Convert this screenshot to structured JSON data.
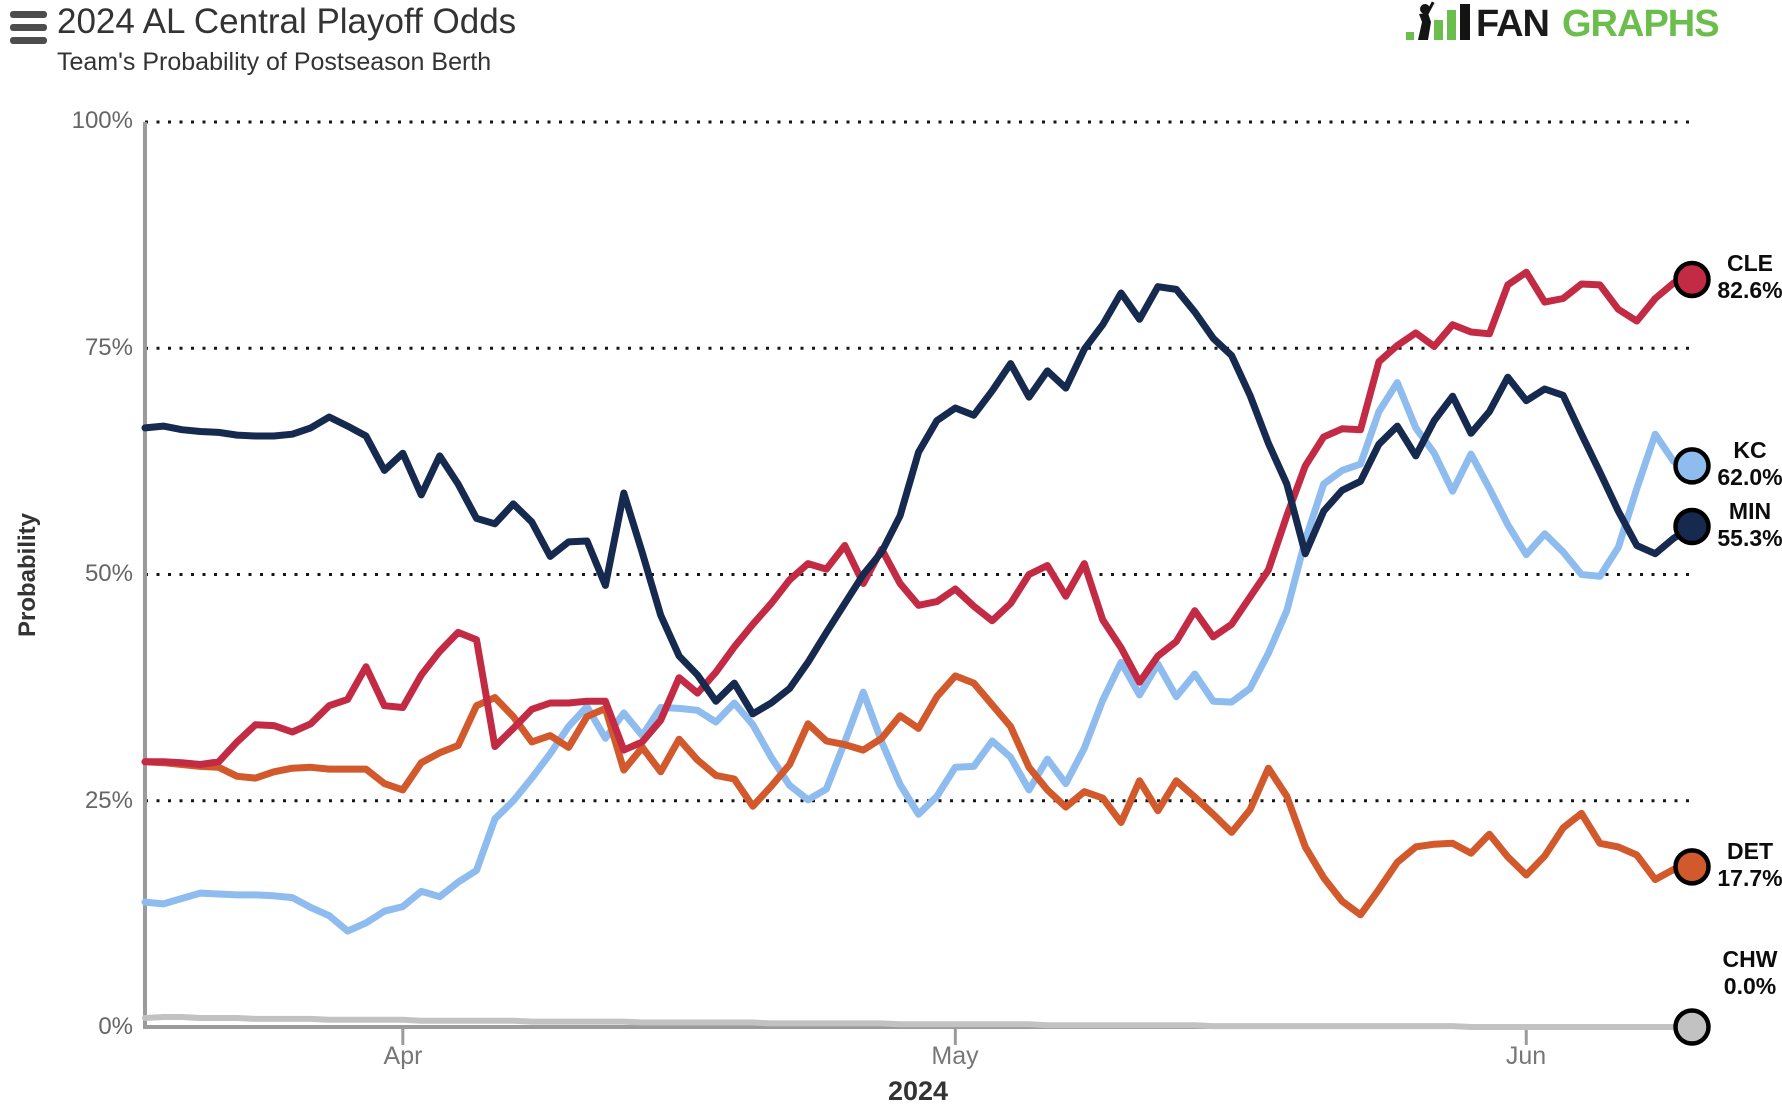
{
  "header": {
    "title": "2024 AL Central Playoff Odds",
    "subtitle": "Team's Probability of Postseason Berth",
    "brand": {
      "fan": "FAN",
      "graphs": "GRAPHS",
      "green": "#6cbe4c",
      "black": "#1a1a1a"
    }
  },
  "axis": {
    "y_ticks": [
      "100%",
      "75%",
      "50%",
      "25%",
      "0%"
    ],
    "x_ticks": [
      "Apr",
      "May",
      "Jun"
    ],
    "ylabel": "Probability",
    "xlabel": "2024"
  },
  "chart_data": {
    "type": "line",
    "title": "2024 AL Central Playoff Odds",
    "subtitle": "Team's Probability of Postseason Berth",
    "ylabel": "Probability",
    "xlabel": "2024",
    "ylim": [
      0,
      100
    ],
    "grid": "horizontal dotted lines at 25/50/75/100",
    "legend_position": "right edge end-point labels with circular markers",
    "y_tick_values": [
      100,
      75,
      50,
      25,
      0
    ],
    "y_tick_labels": [
      "100%",
      "75%",
      "50%",
      "25%",
      "0%"
    ],
    "x_tick_labels": [
      "Apr",
      "May",
      "Jun"
    ],
    "x_tick_days": [
      14,
      44,
      75
    ],
    "x_start_date": "2024-03-18",
    "x_end_date": "2024-06-10",
    "dates": [
      "3/18",
      "3/19",
      "3/20",
      "3/21",
      "3/22",
      "3/23",
      "3/24",
      "3/25",
      "3/26",
      "3/27",
      "3/28",
      "3/29",
      "3/30",
      "3/31",
      "4/1",
      "4/2",
      "4/3",
      "4/4",
      "4/5",
      "4/6",
      "4/7",
      "4/8",
      "4/9",
      "4/10",
      "4/11",
      "4/12",
      "4/13",
      "4/14",
      "4/15",
      "4/16",
      "4/17",
      "4/18",
      "4/19",
      "4/20",
      "4/21",
      "4/22",
      "4/23",
      "4/24",
      "4/25",
      "4/26",
      "4/27",
      "4/28",
      "4/29",
      "4/30",
      "5/1",
      "5/2",
      "5/3",
      "5/4",
      "5/5",
      "5/6",
      "5/7",
      "5/8",
      "5/9",
      "5/10",
      "5/11",
      "5/12",
      "5/13",
      "5/14",
      "5/15",
      "5/16",
      "5/17",
      "5/18",
      "5/19",
      "5/20",
      "5/21",
      "5/22",
      "5/23",
      "5/24",
      "5/25",
      "5/26",
      "5/27",
      "5/28",
      "5/29",
      "5/30",
      "5/31",
      "6/1",
      "6/2",
      "6/3",
      "6/4",
      "6/5",
      "6/6",
      "6/7",
      "6/8",
      "6/9",
      "6/10"
    ],
    "series": [
      {
        "name": "CLE",
        "end_value": "82.6%",
        "color": "#c32b45",
        "values": [
          29.3,
          29.3,
          29.2,
          29.0,
          29.3,
          31.5,
          33.4,
          33.3,
          32.6,
          33.5,
          35.5,
          36.2,
          39.8,
          35.5,
          35.3,
          38.9,
          41.5,
          43.6,
          42.8,
          31.0,
          33.0,
          35.1,
          35.8,
          35.8,
          36.0,
          36.0,
          30.6,
          31.5,
          33.9,
          38.6,
          36.9,
          39.2,
          42.0,
          44.5,
          46.8,
          49.4,
          51.2,
          50.6,
          53.2,
          49.0,
          52.8,
          49.0,
          46.6,
          47.0,
          48.4,
          46.5,
          44.9,
          46.8,
          50.0,
          51.0,
          47.6,
          51.2,
          45.0,
          41.9,
          38.1,
          41.0,
          42.6,
          46.0,
          43.1,
          44.5,
          47.5,
          50.5,
          56.5,
          62.0,
          65.2,
          66.1,
          66.0,
          73.5,
          75.3,
          76.7,
          75.2,
          77.6,
          76.8,
          76.6,
          82.0,
          83.4,
          80.1,
          80.5,
          82.1,
          82.0,
          79.3,
          78.0,
          80.5,
          82.2,
          82.6
        ]
      },
      {
        "name": "KC",
        "end_value": "62.0%",
        "color": "#8fbcee",
        "values": [
          13.8,
          13.6,
          14.2,
          14.8,
          14.7,
          14.6,
          14.6,
          14.5,
          14.3,
          13.2,
          12.3,
          10.6,
          11.5,
          12.8,
          13.3,
          15.0,
          14.4,
          16.0,
          17.3,
          23.0,
          25.0,
          27.5,
          30.2,
          33.2,
          35.4,
          31.9,
          34.7,
          32.2,
          35.3,
          35.2,
          35.0,
          33.7,
          35.8,
          33.4,
          29.8,
          26.7,
          25.1,
          26.3,
          31.5,
          37.0,
          31.5,
          26.8,
          23.5,
          25.5,
          28.7,
          28.8,
          31.6,
          29.8,
          26.2,
          29.6,
          26.9,
          30.8,
          36.1,
          40.3,
          36.7,
          40.1,
          36.5,
          39.0,
          36.0,
          35.9,
          37.4,
          41.3,
          46.0,
          53.8,
          60.0,
          61.5,
          62.2,
          68.0,
          71.2,
          66.2,
          63.4,
          59.2,
          63.3,
          59.5,
          55.5,
          52.2,
          54.5,
          52.5,
          50.0,
          49.8,
          53.0,
          59.5,
          65.5,
          62.5,
          62.0
        ]
      },
      {
        "name": "MIN",
        "end_value": "55.3%",
        "color": "#16294e",
        "values": [
          66.2,
          66.4,
          66.0,
          65.8,
          65.7,
          65.4,
          65.3,
          65.3,
          65.5,
          66.2,
          67.4,
          66.4,
          65.3,
          61.5,
          63.4,
          58.8,
          63.1,
          60.0,
          56.2,
          55.6,
          57.8,
          55.8,
          52.0,
          53.6,
          53.7,
          48.8,
          59.0,
          52.4,
          45.5,
          41.0,
          38.9,
          36.0,
          38.0,
          34.6,
          35.8,
          37.4,
          40.3,
          43.6,
          46.8,
          50.0,
          52.5,
          56.5,
          63.5,
          67.0,
          68.4,
          67.6,
          70.3,
          73.3,
          69.6,
          72.5,
          70.6,
          74.9,
          77.6,
          81.1,
          78.2,
          81.8,
          81.5,
          79.0,
          76.1,
          74.2,
          69.8,
          64.5,
          60.0,
          52.3,
          57.0,
          59.3,
          60.3,
          64.4,
          66.4,
          63.1,
          67.0,
          69.7,
          65.6,
          68.0,
          71.8,
          69.2,
          70.5,
          69.8,
          65.5,
          61.3,
          57.0,
          53.2,
          52.3,
          54.0,
          55.3
        ]
      },
      {
        "name": "DET",
        "end_value": "17.7%",
        "color": "#d2592b",
        "values": [
          29.3,
          29.2,
          29.0,
          28.8,
          28.7,
          27.7,
          27.5,
          28.2,
          28.6,
          28.7,
          28.5,
          28.5,
          28.5,
          26.9,
          26.2,
          29.2,
          30.3,
          31.1,
          35.5,
          36.4,
          34.3,
          31.5,
          32.2,
          30.9,
          34.3,
          35.2,
          28.4,
          30.9,
          28.2,
          31.8,
          29.5,
          27.8,
          27.4,
          24.4,
          26.6,
          29.0,
          33.5,
          31.6,
          31.2,
          30.6,
          31.9,
          34.4,
          33.0,
          36.5,
          38.8,
          38.0,
          35.6,
          33.2,
          28.7,
          26.2,
          24.3,
          26.0,
          25.3,
          22.6,
          27.2,
          23.9,
          27.2,
          25.4,
          23.5,
          21.5,
          24.0,
          28.6,
          25.5,
          19.9,
          16.5,
          13.9,
          12.4,
          15.2,
          18.2,
          19.9,
          20.2,
          20.3,
          19.2,
          21.3,
          18.8,
          16.8,
          18.9,
          22.0,
          23.6,
          20.3,
          19.9,
          19.0,
          16.3,
          17.4,
          17.7
        ]
      },
      {
        "name": "CHW",
        "end_value": "0.0%",
        "color": "#c2c2c2",
        "values": [
          1.0,
          1.1,
          1.1,
          1.0,
          1.0,
          1.0,
          0.9,
          0.9,
          0.9,
          0.9,
          0.8,
          0.8,
          0.8,
          0.8,
          0.8,
          0.7,
          0.7,
          0.7,
          0.7,
          0.7,
          0.7,
          0.6,
          0.6,
          0.6,
          0.6,
          0.6,
          0.6,
          0.5,
          0.5,
          0.5,
          0.5,
          0.5,
          0.5,
          0.5,
          0.4,
          0.4,
          0.4,
          0.4,
          0.4,
          0.4,
          0.4,
          0.3,
          0.3,
          0.3,
          0.3,
          0.3,
          0.3,
          0.3,
          0.3,
          0.2,
          0.2,
          0.2,
          0.2,
          0.2,
          0.2,
          0.2,
          0.2,
          0.2,
          0.1,
          0.1,
          0.1,
          0.1,
          0.1,
          0.1,
          0.1,
          0.1,
          0.1,
          0.1,
          0.1,
          0.1,
          0.1,
          0.1,
          0.0,
          0.0,
          0.0,
          0.0,
          0.0,
          0.0,
          0.0,
          0.0,
          0.0,
          0.0,
          0.0,
          0.0,
          0.0
        ]
      }
    ]
  }
}
